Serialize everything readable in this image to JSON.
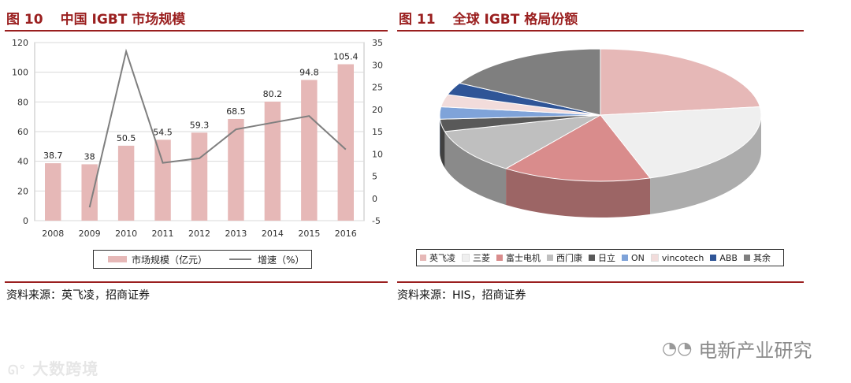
{
  "left_figure": {
    "number": "图 10",
    "title": "中国 IGBT 市场规模",
    "source": "资料来源：英飞凌，招商证券"
  },
  "right_figure": {
    "number": "图 11",
    "title": "全球 IGBT 格局份额",
    "source": "资料来源：HIS，招商证券"
  },
  "watermark": {
    "left": "大数跨境",
    "right": "电新产业研究"
  },
  "colors": {
    "title_red": "#9a1f1f",
    "bar_pink": "#e6b8b7",
    "line_gray": "#7f7f7f"
  },
  "chart_data": [
    {
      "type": "bar",
      "categories": [
        "2008",
        "2009",
        "2010",
        "2011",
        "2012",
        "2013",
        "2014",
        "2015",
        "2016"
      ],
      "series": [
        {
          "name": "市场规模（亿元）",
          "type": "bar",
          "axis": "left",
          "values": [
            38.7,
            38,
            50.5,
            54.5,
            59.3,
            68.5,
            80.2,
            94.8,
            105.4
          ],
          "labels": [
            "38.7",
            "38",
            "50.5",
            "54.5",
            "59.3",
            "68.5",
            "80.2",
            "94.8",
            "105.4"
          ]
        },
        {
          "name": "增速（%）",
          "type": "line",
          "axis": "right",
          "values": [
            null,
            -2,
            33,
            8,
            9,
            15.5,
            17,
            18.5,
            11
          ]
        }
      ],
      "ylim_left": [
        0,
        120
      ],
      "yticks_left": [
        "0",
        "20",
        "40",
        "60",
        "80",
        "100",
        "120"
      ],
      "ylim_right": [
        -5,
        35
      ],
      "yticks_right": [
        "-5",
        "0",
        "5",
        "10",
        "15",
        "20",
        "25",
        "30",
        "35"
      ],
      "grid": true,
      "legend": "bottom"
    },
    {
      "type": "pie",
      "style": "3d",
      "slices": [
        {
          "name": "英飞凌",
          "value": 23,
          "color": "#e6b8b7"
        },
        {
          "name": "三菱",
          "value": 22,
          "color": "#efefef"
        },
        {
          "name": "富士电机",
          "value": 15,
          "color": "#d98c8c"
        },
        {
          "name": "西门康",
          "value": 11,
          "color": "#bfbfbf"
        },
        {
          "name": "日立",
          "value": 3,
          "color": "#595959"
        },
        {
          "name": "ON",
          "value": 3,
          "color": "#7fa3d9"
        },
        {
          "name": "vincotech",
          "value": 3,
          "color": "#f2dcdb"
        },
        {
          "name": "ABB",
          "value": 3,
          "color": "#2f5597"
        },
        {
          "name": "其余",
          "value": 17,
          "color": "#7f7f7f"
        }
      ],
      "legend": "bottom"
    }
  ]
}
